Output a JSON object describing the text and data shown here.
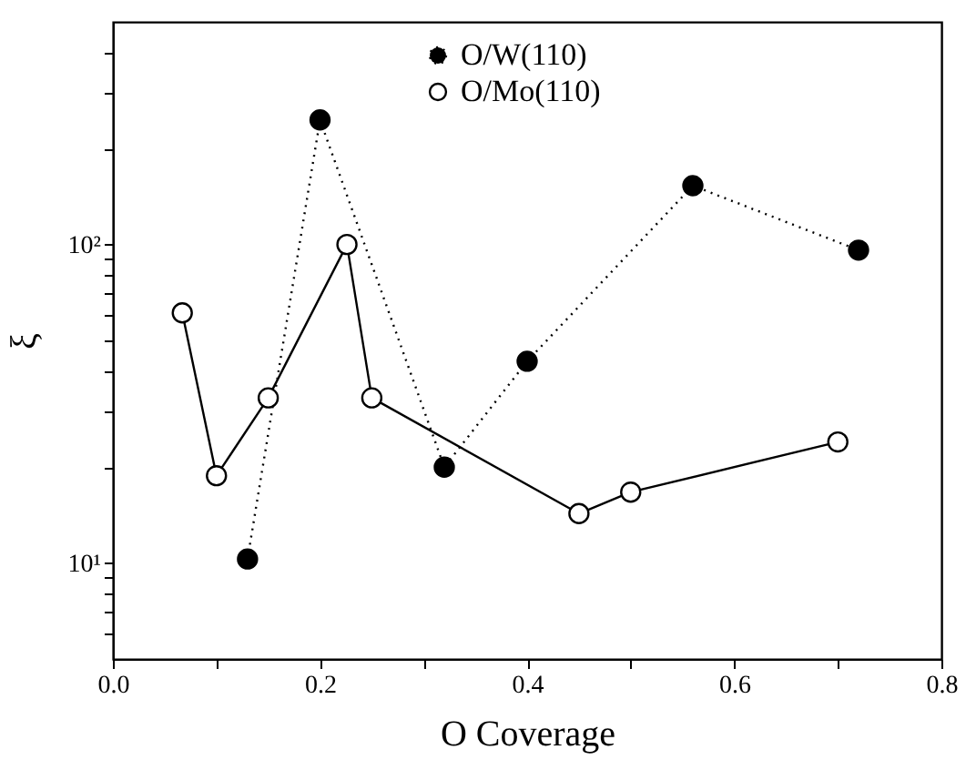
{
  "chart_data": {
    "type": "line",
    "xlabel": "O Coverage",
    "ylabel": "ξ",
    "log": "y",
    "grid": false,
    "legend": "top",
    "marker": "circle",
    "xlim": [
      0,
      0.8
    ],
    "xticks": [
      {
        "value": 0,
        "label": "0.0"
      },
      {
        "value": 0.1,
        "label": null
      },
      0.2,
      {
        "value": 0.3,
        "label": null
      },
      0.4,
      {
        "value": 0.5,
        "label": null
      },
      0.6,
      {
        "value": 0.7,
        "label": null
      },
      0.8
    ],
    "ylim": [
      5,
      500
    ],
    "yticks": [
      {
        "value": 6,
        "label": null
      },
      {
        "value": 7,
        "label": null
      },
      {
        "value": 8,
        "label": null
      },
      {
        "value": 9,
        "label": null
      },
      {
        "value": 10,
        "label": "10¹"
      },
      {
        "value": 20,
        "label": null
      },
      {
        "value": 30,
        "label": null
      },
      {
        "value": 40,
        "label": null
      },
      {
        "value": 50,
        "label": null
      },
      {
        "value": 60,
        "label": null
      },
      {
        "value": 70,
        "label": null
      },
      {
        "value": 80,
        "label": null
      },
      {
        "value": 90,
        "label": null
      },
      {
        "value": 100,
        "label": "10²"
      },
      {
        "value": 200,
        "label": null
      },
      {
        "value": 300,
        "label": null
      },
      {
        "value": 400,
        "label": null
      }
    ],
    "series": [
      {
        "name": "O/W(110)",
        "color": "#000000",
        "line_style": "dotted",
        "x": [
          0.13,
          0.2,
          0.32,
          0.4,
          0.56,
          0.72
        ],
        "values": [
          10.3,
          246,
          20,
          43,
          153,
          96
        ]
      },
      {
        "name": "O/Mo(110)",
        "color": "#000000",
        "line_style": "solid",
        "x": [
          0.067,
          0.1,
          0.15,
          0.226,
          0.25,
          0.45,
          0.5,
          0.7
        ],
        "values": [
          61,
          18.8,
          33,
          100,
          33,
          14.3,
          16.7,
          24
        ]
      }
    ]
  }
}
